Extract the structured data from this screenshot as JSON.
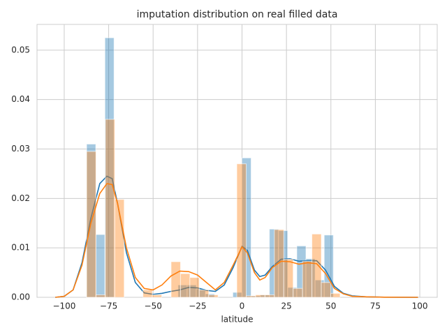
{
  "chart_data": {
    "type": "histogram",
    "title": "imputation distribution on real filled data",
    "x_label": "latitude",
    "xlim": [
      -115.3,
      109.8
    ],
    "ylim": [
      0,
      0.0552
    ],
    "xticks": [
      {
        "value": -100,
        "label": "−100"
      },
      {
        "value": -75,
        "label": "−75"
      },
      {
        "value": -50,
        "label": "−50"
      },
      {
        "value": -25,
        "label": "−25"
      },
      0,
      25,
      50,
      75,
      100
    ],
    "yticks": [
      {
        "value": 0,
        "label": "0.00"
      },
      {
        "value": 0.01,
        "label": "0.01"
      },
      {
        "value": 0.02,
        "label": "0.02"
      },
      {
        "value": 0.03,
        "label": "0.03"
      },
      {
        "value": 0.04,
        "label": "0.04"
      },
      {
        "value": 0.05,
        "label": "0.05"
      }
    ],
    "grid": true,
    "series": [
      {
        "color": "#1f77b4",
        "bins": [
          -87.4,
          -82.26,
          -77.12,
          -71.98,
          -66.84,
          -61.7,
          -56.56,
          -51.42,
          -46.28,
          -41.14,
          -36,
          -30.86,
          -25.72,
          -20.58,
          -15.44,
          -10.3,
          -5.16,
          -0.02,
          5.12,
          10.26,
          15.4,
          20.54,
          25.68,
          30.82,
          35.96,
          41.1,
          46.24,
          51.38
        ],
        "values": [
          0.031,
          0.0127,
          0.0525,
          0,
          0,
          0,
          0,
          0,
          0,
          0,
          0.0025,
          0.0025,
          0.0017,
          0.0007,
          0,
          0,
          0.001,
          0.0282,
          0.0003,
          0.0005,
          0.0138,
          0.0135,
          0.002,
          0.0104,
          0.0078,
          0.0035,
          0.0126
        ],
        "kde_x": [
          -105,
          -100,
          -95,
          -90,
          -85,
          -80,
          -76,
          -73,
          -70,
          -65,
          -60,
          -55,
          -50,
          -45,
          -40,
          -35,
          -30,
          -25,
          -20,
          -15,
          -10,
          -5,
          0,
          3,
          7,
          10,
          13,
          17,
          22,
          27,
          32,
          37,
          42,
          47,
          52,
          57,
          62,
          70,
          80,
          99
        ],
        "kde_values": [
          0,
          0.0002,
          0.0015,
          0.007,
          0.016,
          0.023,
          0.0245,
          0.024,
          0.019,
          0.009,
          0.003,
          0.0009,
          0.0006,
          0.0008,
          0.0012,
          0.0015,
          0.002,
          0.0019,
          0.0014,
          0.0012,
          0.0025,
          0.006,
          0.0103,
          0.0095,
          0.0055,
          0.0042,
          0.0045,
          0.0062,
          0.0077,
          0.0078,
          0.0073,
          0.0074,
          0.0074,
          0.0055,
          0.0022,
          0.0008,
          0.0003,
          0.0001,
          3e-05,
          0
        ]
      },
      {
        "color": "#ff7f0e",
        "bins": [
          -87.4,
          -82.12,
          -76.84,
          -71.56,
          -66.28,
          -61,
          -55.72,
          -50.44,
          -45.16,
          -39.88,
          -34.6,
          -29.32,
          -24.04,
          -18.76,
          -13.48,
          -8.2,
          -2.92,
          2.36,
          7.64,
          12.92,
          18.2,
          23.48,
          28.76,
          34.04,
          39.32,
          44.6,
          49.88,
          55.16
        ],
        "values": [
          0.0295,
          0.0005,
          0.036,
          0.0198,
          0,
          0,
          0.0015,
          0.0005,
          0,
          0.0072,
          0.0048,
          0.004,
          0.0015,
          0.0005,
          0,
          0,
          0.027,
          0.0003,
          0.0005,
          0.0005,
          0.0137,
          0.0077,
          0.0018,
          0.0073,
          0.0128,
          0.003,
          0.0008
        ],
        "kde_x": [
          -105,
          -100,
          -95,
          -90,
          -85,
          -80,
          -76,
          -73,
          -70,
          -65,
          -60,
          -55,
          -50,
          -45,
          -40,
          -35,
          -30,
          -25,
          -20,
          -15,
          -10,
          -5,
          0,
          3,
          7,
          10,
          13,
          17,
          22,
          27,
          32,
          37,
          42,
          47,
          52,
          57,
          62,
          70,
          80,
          99
        ],
        "kde_values": [
          0,
          0.0002,
          0.0015,
          0.0065,
          0.015,
          0.021,
          0.023,
          0.0228,
          0.019,
          0.01,
          0.004,
          0.0018,
          0.0015,
          0.0025,
          0.0043,
          0.0053,
          0.0052,
          0.0045,
          0.003,
          0.0015,
          0.003,
          0.0065,
          0.0102,
          0.009,
          0.005,
          0.0035,
          0.004,
          0.006,
          0.0073,
          0.0072,
          0.0067,
          0.007,
          0.0068,
          0.0048,
          0.0018,
          0.0007,
          0.0002,
          0.0001,
          3e-05,
          0
        ]
      }
    ]
  }
}
